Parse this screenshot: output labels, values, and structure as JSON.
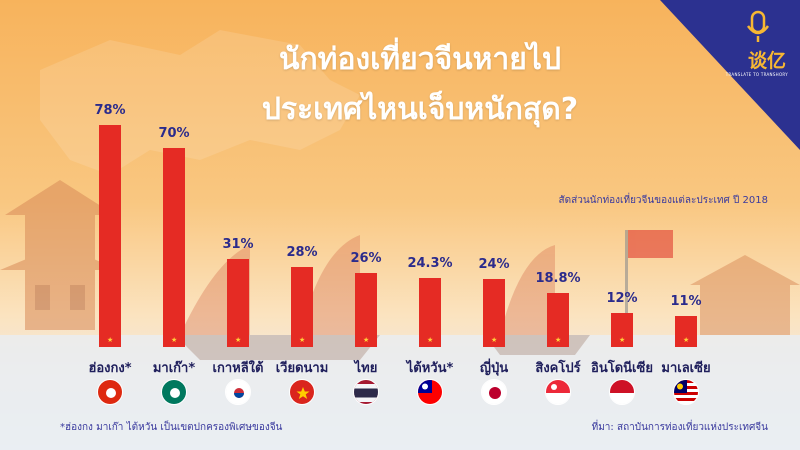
{
  "title_line1": "นักท่องเที่ยวจีนหายไป",
  "title_line2": "ประเทศไหนเจ็บหนักสุด?",
  "subtitle": "สัดส่วนนักท่องเที่ยวจีนของแต่ละประเทศ ปี 2018",
  "footnote": "*ฮ่องกง มาเก๊า ไต้หวัน เป็นเขตปกครองพิเศษของจีน",
  "source": "ที่มา: สถาบันการท่องเที่ยวแห่งประเทศจีน",
  "logo": {
    "text": "谈亿",
    "subtext": "TRANSLATE TO TRANSHORY",
    "icon": "microphone-icon"
  },
  "colors": {
    "bar": "#e52b24",
    "label": "#2b2b8c",
    "accent": "#f7b733",
    "corner": "#2c3190"
  },
  "chart_data": {
    "type": "bar",
    "title": "นักท่องเที่ยวจีนหายไป ประเทศไหนเจ็บหนักสุด?",
    "categories": [
      "ฮ่องกง*",
      "มาเก๊า*",
      "เกาหลีใต้",
      "เวียดนาม",
      "ไทย",
      "ไต้หวัน*",
      "ญี่ปุ่น",
      "สิงคโปร์",
      "อินโดนีเซีย",
      "มาเลเซีย"
    ],
    "values": [
      78,
      70,
      31,
      28,
      26,
      24.3,
      24,
      18.8,
      12,
      11
    ],
    "value_labels": [
      "78%",
      "70%",
      "31%",
      "28%",
      "26%",
      "24.3%",
      "24%",
      "18.8%",
      "12%",
      "11%"
    ],
    "flags": [
      "hong-kong-flag-icon",
      "macau-flag-icon",
      "south-korea-flag-icon",
      "vietnam-flag-icon",
      "thailand-flag-icon",
      "taiwan-flag-icon",
      "japan-flag-icon",
      "singapore-flag-icon",
      "indonesia-flag-icon",
      "malaysia-flag-icon"
    ],
    "xlabel": "",
    "ylabel": "",
    "ylim": [
      0,
      100
    ],
    "grid": false,
    "legend": "none"
  }
}
